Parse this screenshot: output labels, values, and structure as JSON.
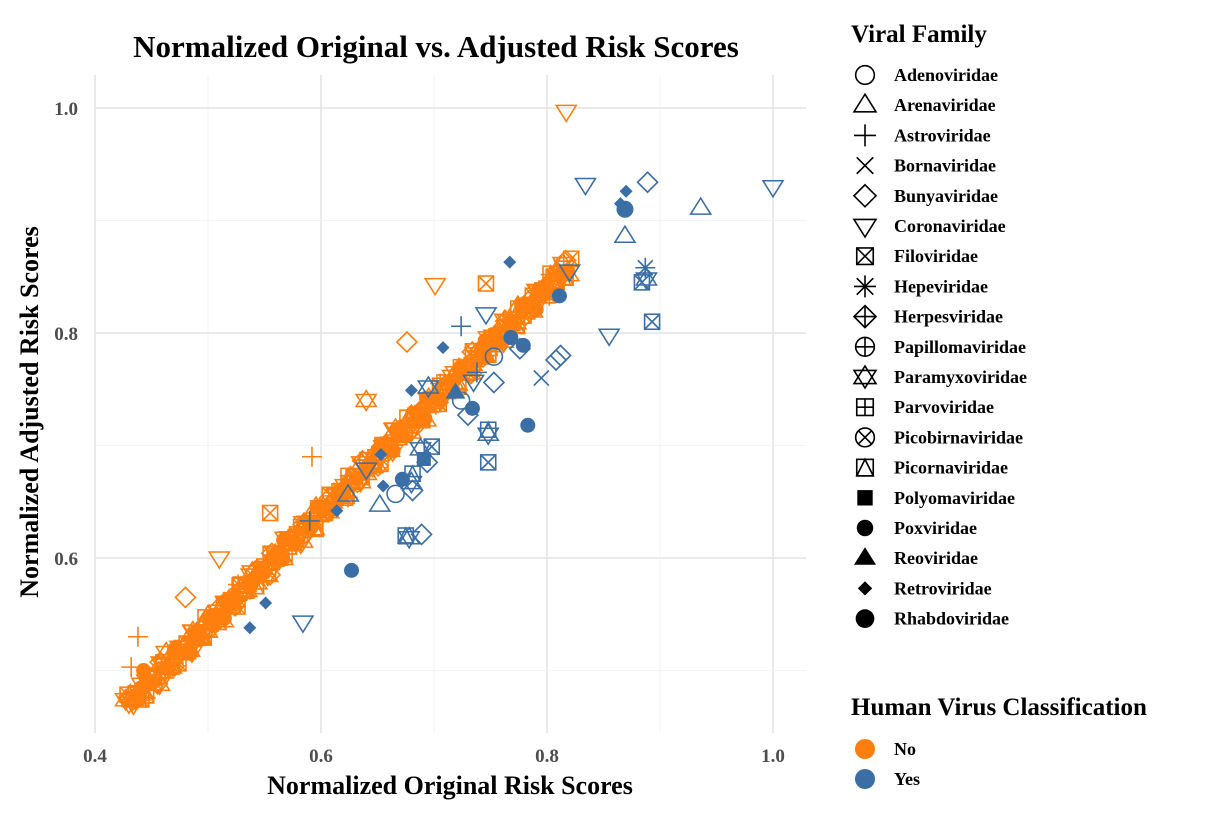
{
  "chart_data": {
    "type": "scatter",
    "title": "Normalized Original vs. Adjusted Risk Scores",
    "xlabel": "Normalized Original Risk Scores",
    "ylabel": "Normalized Adjusted Risk Scores",
    "xlim": [
      0.4,
      1.0
    ],
    "ylim": [
      0.47,
      1.0
    ],
    "xticks": [
      "0.4",
      "0.6",
      "0.8",
      "1.0"
    ],
    "yticks": [
      "0.6",
      "0.8",
      "1.0"
    ],
    "grid": true,
    "legend_position": "right",
    "shape_legend": {
      "title": "Viral Family",
      "entries": [
        {
          "label": "Adenoviridae",
          "shape": "open-circle"
        },
        {
          "label": "Arenaviridae",
          "shape": "open-triangle"
        },
        {
          "label": "Astroviridae",
          "shape": "plus"
        },
        {
          "label": "Bornaviridae",
          "shape": "cross"
        },
        {
          "label": "Bunyaviridae",
          "shape": "open-diamond"
        },
        {
          "label": "Coronaviridae",
          "shape": "open-triangle-down"
        },
        {
          "label": "Filoviridae",
          "shape": "square-cross"
        },
        {
          "label": "Hepeviridae",
          "shape": "asterisk"
        },
        {
          "label": "Herpesviridae",
          "shape": "diamond-plus"
        },
        {
          "label": "Papillomaviridae",
          "shape": "circle-plus"
        },
        {
          "label": "Paramyxoviridae",
          "shape": "star-of-david"
        },
        {
          "label": "Parvoviridae",
          "shape": "square-plus"
        },
        {
          "label": "Picobirnaviridae",
          "shape": "circle-cross"
        },
        {
          "label": "Picornaviridae",
          "shape": "square-triangle"
        },
        {
          "label": "Polyomaviridae",
          "shape": "filled-square"
        },
        {
          "label": "Poxviridae",
          "shape": "filled-circle"
        },
        {
          "label": "Reoviridae",
          "shape": "filled-triangle"
        },
        {
          "label": "Retroviridae",
          "shape": "filled-diamond"
        },
        {
          "label": "Rhabdoviridae",
          "shape": "filled-circle-large"
        }
      ]
    },
    "color_legend": {
      "title": "Human Virus Classification",
      "entries": [
        {
          "label": "No",
          "color": "#FF7F0E"
        },
        {
          "label": "Yes",
          "color": "#3A6EA5"
        }
      ]
    },
    "series": [
      {
        "name": "No",
        "color": "#FF7F0E",
        "diagonal_band": {
          "x_start": 0.43,
          "x_end": 0.82,
          "y_minus_x": 0.04,
          "n_points": 420
        },
        "points": [
          {
            "x": 0.443,
            "y": 0.5,
            "family": "Poxviridae"
          },
          {
            "x": 0.432,
            "y": 0.503,
            "family": "Astroviridae"
          },
          {
            "x": 0.427,
            "y": 0.474,
            "family": "Paramyxoviridae"
          },
          {
            "x": 0.43,
            "y": 0.471,
            "family": "Coronaviridae"
          },
          {
            "x": 0.463,
            "y": 0.516,
            "family": "Paramyxoviridae"
          },
          {
            "x": 0.438,
            "y": 0.53,
            "family": "Astroviridae"
          },
          {
            "x": 0.817,
            "y": 0.997,
            "family": "Coronaviridae"
          },
          {
            "x": 0.746,
            "y": 0.844,
            "family": "Filoviridae"
          },
          {
            "x": 0.701,
            "y": 0.843,
            "family": "Coronaviridae"
          },
          {
            "x": 0.676,
            "y": 0.792,
            "family": "Bunyaviridae"
          },
          {
            "x": 0.64,
            "y": 0.74,
            "family": "Paramyxoviridae"
          },
          {
            "x": 0.592,
            "y": 0.69,
            "family": "Astroviridae"
          },
          {
            "x": 0.555,
            "y": 0.64,
            "family": "Filoviridae"
          },
          {
            "x": 0.51,
            "y": 0.6,
            "family": "Coronaviridae"
          },
          {
            "x": 0.48,
            "y": 0.565,
            "family": "Bunyaviridae"
          }
        ]
      },
      {
        "name": "Yes",
        "color": "#3A6EA5",
        "points": [
          {
            "x": 0.889,
            "y": 0.934,
            "family": "Bunyaviridae"
          },
          {
            "x": 0.87,
            "y": 0.926,
            "family": "Retroviridae"
          },
          {
            "x": 0.865,
            "y": 0.915,
            "family": "Retroviridae"
          },
          {
            "x": 0.869,
            "y": 0.91,
            "family": "Rhabdoviridae"
          },
          {
            "x": 0.834,
            "y": 0.932,
            "family": "Coronaviridae"
          },
          {
            "x": 0.936,
            "y": 0.911,
            "family": "Arenaviridae"
          },
          {
            "x": 1.0,
            "y": 0.93,
            "family": "Coronaviridae"
          },
          {
            "x": 0.869,
            "y": 0.886,
            "family": "Arenaviridae"
          },
          {
            "x": 0.767,
            "y": 0.863,
            "family": "Retroviridae"
          },
          {
            "x": 0.82,
            "y": 0.855,
            "family": "Coronaviridae"
          },
          {
            "x": 0.887,
            "y": 0.858,
            "family": "Hepeviridae"
          },
          {
            "x": 0.884,
            "y": 0.845,
            "family": "Filoviridae"
          },
          {
            "x": 0.888,
            "y": 0.848,
            "family": "Paramyxoviridae"
          },
          {
            "x": 0.893,
            "y": 0.81,
            "family": "Filoviridae"
          },
          {
            "x": 0.811,
            "y": 0.833,
            "family": "Poxviridae"
          },
          {
            "x": 0.746,
            "y": 0.817,
            "family": "Coronaviridae"
          },
          {
            "x": 0.855,
            "y": 0.798,
            "family": "Coronaviridae"
          },
          {
            "x": 0.724,
            "y": 0.806,
            "family": "Astroviridae"
          },
          {
            "x": 0.768,
            "y": 0.796,
            "family": "Poxviridae"
          },
          {
            "x": 0.779,
            "y": 0.789,
            "family": "Poxviridae"
          },
          {
            "x": 0.776,
            "y": 0.786,
            "family": "Bunyaviridae"
          },
          {
            "x": 0.753,
            "y": 0.779,
            "family": "Adenoviridae"
          },
          {
            "x": 0.812,
            "y": 0.78,
            "family": "Bunyaviridae"
          },
          {
            "x": 0.808,
            "y": 0.776,
            "family": "Bunyaviridae"
          },
          {
            "x": 0.708,
            "y": 0.787,
            "family": "Retroviridae"
          },
          {
            "x": 0.738,
            "y": 0.765,
            "family": "Astroviridae"
          },
          {
            "x": 0.795,
            "y": 0.76,
            "family": "Bornaviridae"
          },
          {
            "x": 0.735,
            "y": 0.757,
            "family": "Coronaviridae"
          },
          {
            "x": 0.753,
            "y": 0.756,
            "family": "Bunyaviridae"
          },
          {
            "x": 0.695,
            "y": 0.752,
            "family": "Paramyxoviridae"
          },
          {
            "x": 0.68,
            "y": 0.749,
            "family": "Retroviridae"
          },
          {
            "x": 0.719,
            "y": 0.747,
            "family": "Reoviridae"
          },
          {
            "x": 0.724,
            "y": 0.74,
            "family": "Adenoviridae"
          },
          {
            "x": 0.734,
            "y": 0.733,
            "family": "Poxviridae"
          },
          {
            "x": 0.73,
            "y": 0.727,
            "family": "Bunyaviridae"
          },
          {
            "x": 0.783,
            "y": 0.718,
            "family": "Poxviridae"
          },
          {
            "x": 0.748,
            "y": 0.71,
            "family": "Paramyxoviridae"
          },
          {
            "x": 0.748,
            "y": 0.714,
            "family": "Picornaviridae"
          },
          {
            "x": 0.698,
            "y": 0.699,
            "family": "Filoviridae"
          },
          {
            "x": 0.688,
            "y": 0.697,
            "family": "Paramyxoviridae"
          },
          {
            "x": 0.653,
            "y": 0.692,
            "family": "Retroviridae"
          },
          {
            "x": 0.691,
            "y": 0.688,
            "family": "Polyomaviridae"
          },
          {
            "x": 0.694,
            "y": 0.685,
            "family": "Bunyaviridae"
          },
          {
            "x": 0.748,
            "y": 0.685,
            "family": "Filoviridae"
          },
          {
            "x": 0.64,
            "y": 0.679,
            "family": "Coronaviridae"
          },
          {
            "x": 0.681,
            "y": 0.675,
            "family": "Picornaviridae"
          },
          {
            "x": 0.672,
            "y": 0.67,
            "family": "Poxviridae"
          },
          {
            "x": 0.68,
            "y": 0.667,
            "family": "Paramyxoviridae"
          },
          {
            "x": 0.655,
            "y": 0.664,
            "family": "Retroviridae"
          },
          {
            "x": 0.681,
            "y": 0.66,
            "family": "Bunyaviridae"
          },
          {
            "x": 0.666,
            "y": 0.657,
            "family": "Adenoviridae"
          },
          {
            "x": 0.624,
            "y": 0.656,
            "family": "Arenaviridae"
          },
          {
            "x": 0.652,
            "y": 0.647,
            "family": "Arenaviridae"
          },
          {
            "x": 0.614,
            "y": 0.642,
            "family": "Retroviridae"
          },
          {
            "x": 0.59,
            "y": 0.633,
            "family": "Astroviridae"
          },
          {
            "x": 0.689,
            "y": 0.621,
            "family": "Bunyaviridae"
          },
          {
            "x": 0.675,
            "y": 0.62,
            "family": "Picornaviridae"
          },
          {
            "x": 0.678,
            "y": 0.618,
            "family": "Paramyxoviridae"
          },
          {
            "x": 0.627,
            "y": 0.589,
            "family": "Poxviridae"
          },
          {
            "x": 0.551,
            "y": 0.56,
            "family": "Retroviridae"
          },
          {
            "x": 0.584,
            "y": 0.543,
            "family": "Coronaviridae"
          },
          {
            "x": 0.537,
            "y": 0.538,
            "family": "Retroviridae"
          }
        ]
      }
    ]
  }
}
